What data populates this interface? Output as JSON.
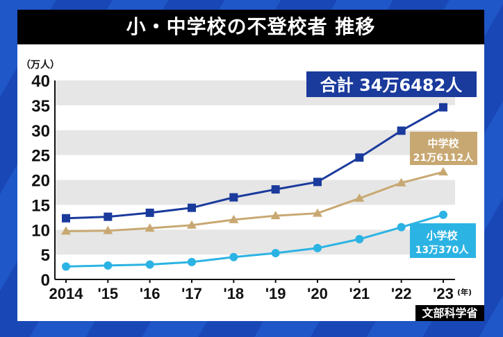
{
  "title": "小・中学校の不登校者 推移",
  "source": "文部科学省",
  "colors": {
    "total": "#1a3a9c",
    "middle": "#c8a872",
    "elementary": "#2bb3e3",
    "band": "#e6e6e6"
  },
  "chart_data": {
    "type": "line",
    "title": "小・中学校の不登校者 推移",
    "ylabel": "（万人）",
    "xlabel": "(年)",
    "ylim": [
      0,
      40
    ],
    "yticks": [
      "0",
      "5",
      "10",
      "15",
      "20",
      "25",
      "30",
      "35",
      "40"
    ],
    "categories": [
      "2014",
      "'15",
      "'16",
      "'17",
      "'18",
      "'19",
      "'20",
      "'21",
      "'22",
      "'23"
    ],
    "grid": "alternating horizontal bands",
    "series": [
      {
        "key": "total",
        "marker": "square",
        "values": [
          12.3,
          12.6,
          13.4,
          14.4,
          16.5,
          18.1,
          19.6,
          24.5,
          29.9,
          34.6
        ]
      },
      {
        "key": "middle",
        "marker": "triangle",
        "values": [
          9.7,
          9.8,
          10.3,
          10.9,
          12.0,
          12.8,
          13.3,
          16.3,
          19.4,
          21.6
        ]
      },
      {
        "key": "elementary",
        "marker": "circle",
        "values": [
          2.6,
          2.8,
          3.0,
          3.5,
          4.5,
          5.3,
          6.3,
          8.1,
          10.5,
          13.0
        ]
      }
    ],
    "annotations": {
      "total": "合計 34万6482人",
      "middle_name": "中学校",
      "middle_value": "21万6112人",
      "elementary_name": "小学校",
      "elementary_value": "13万370人"
    }
  }
}
